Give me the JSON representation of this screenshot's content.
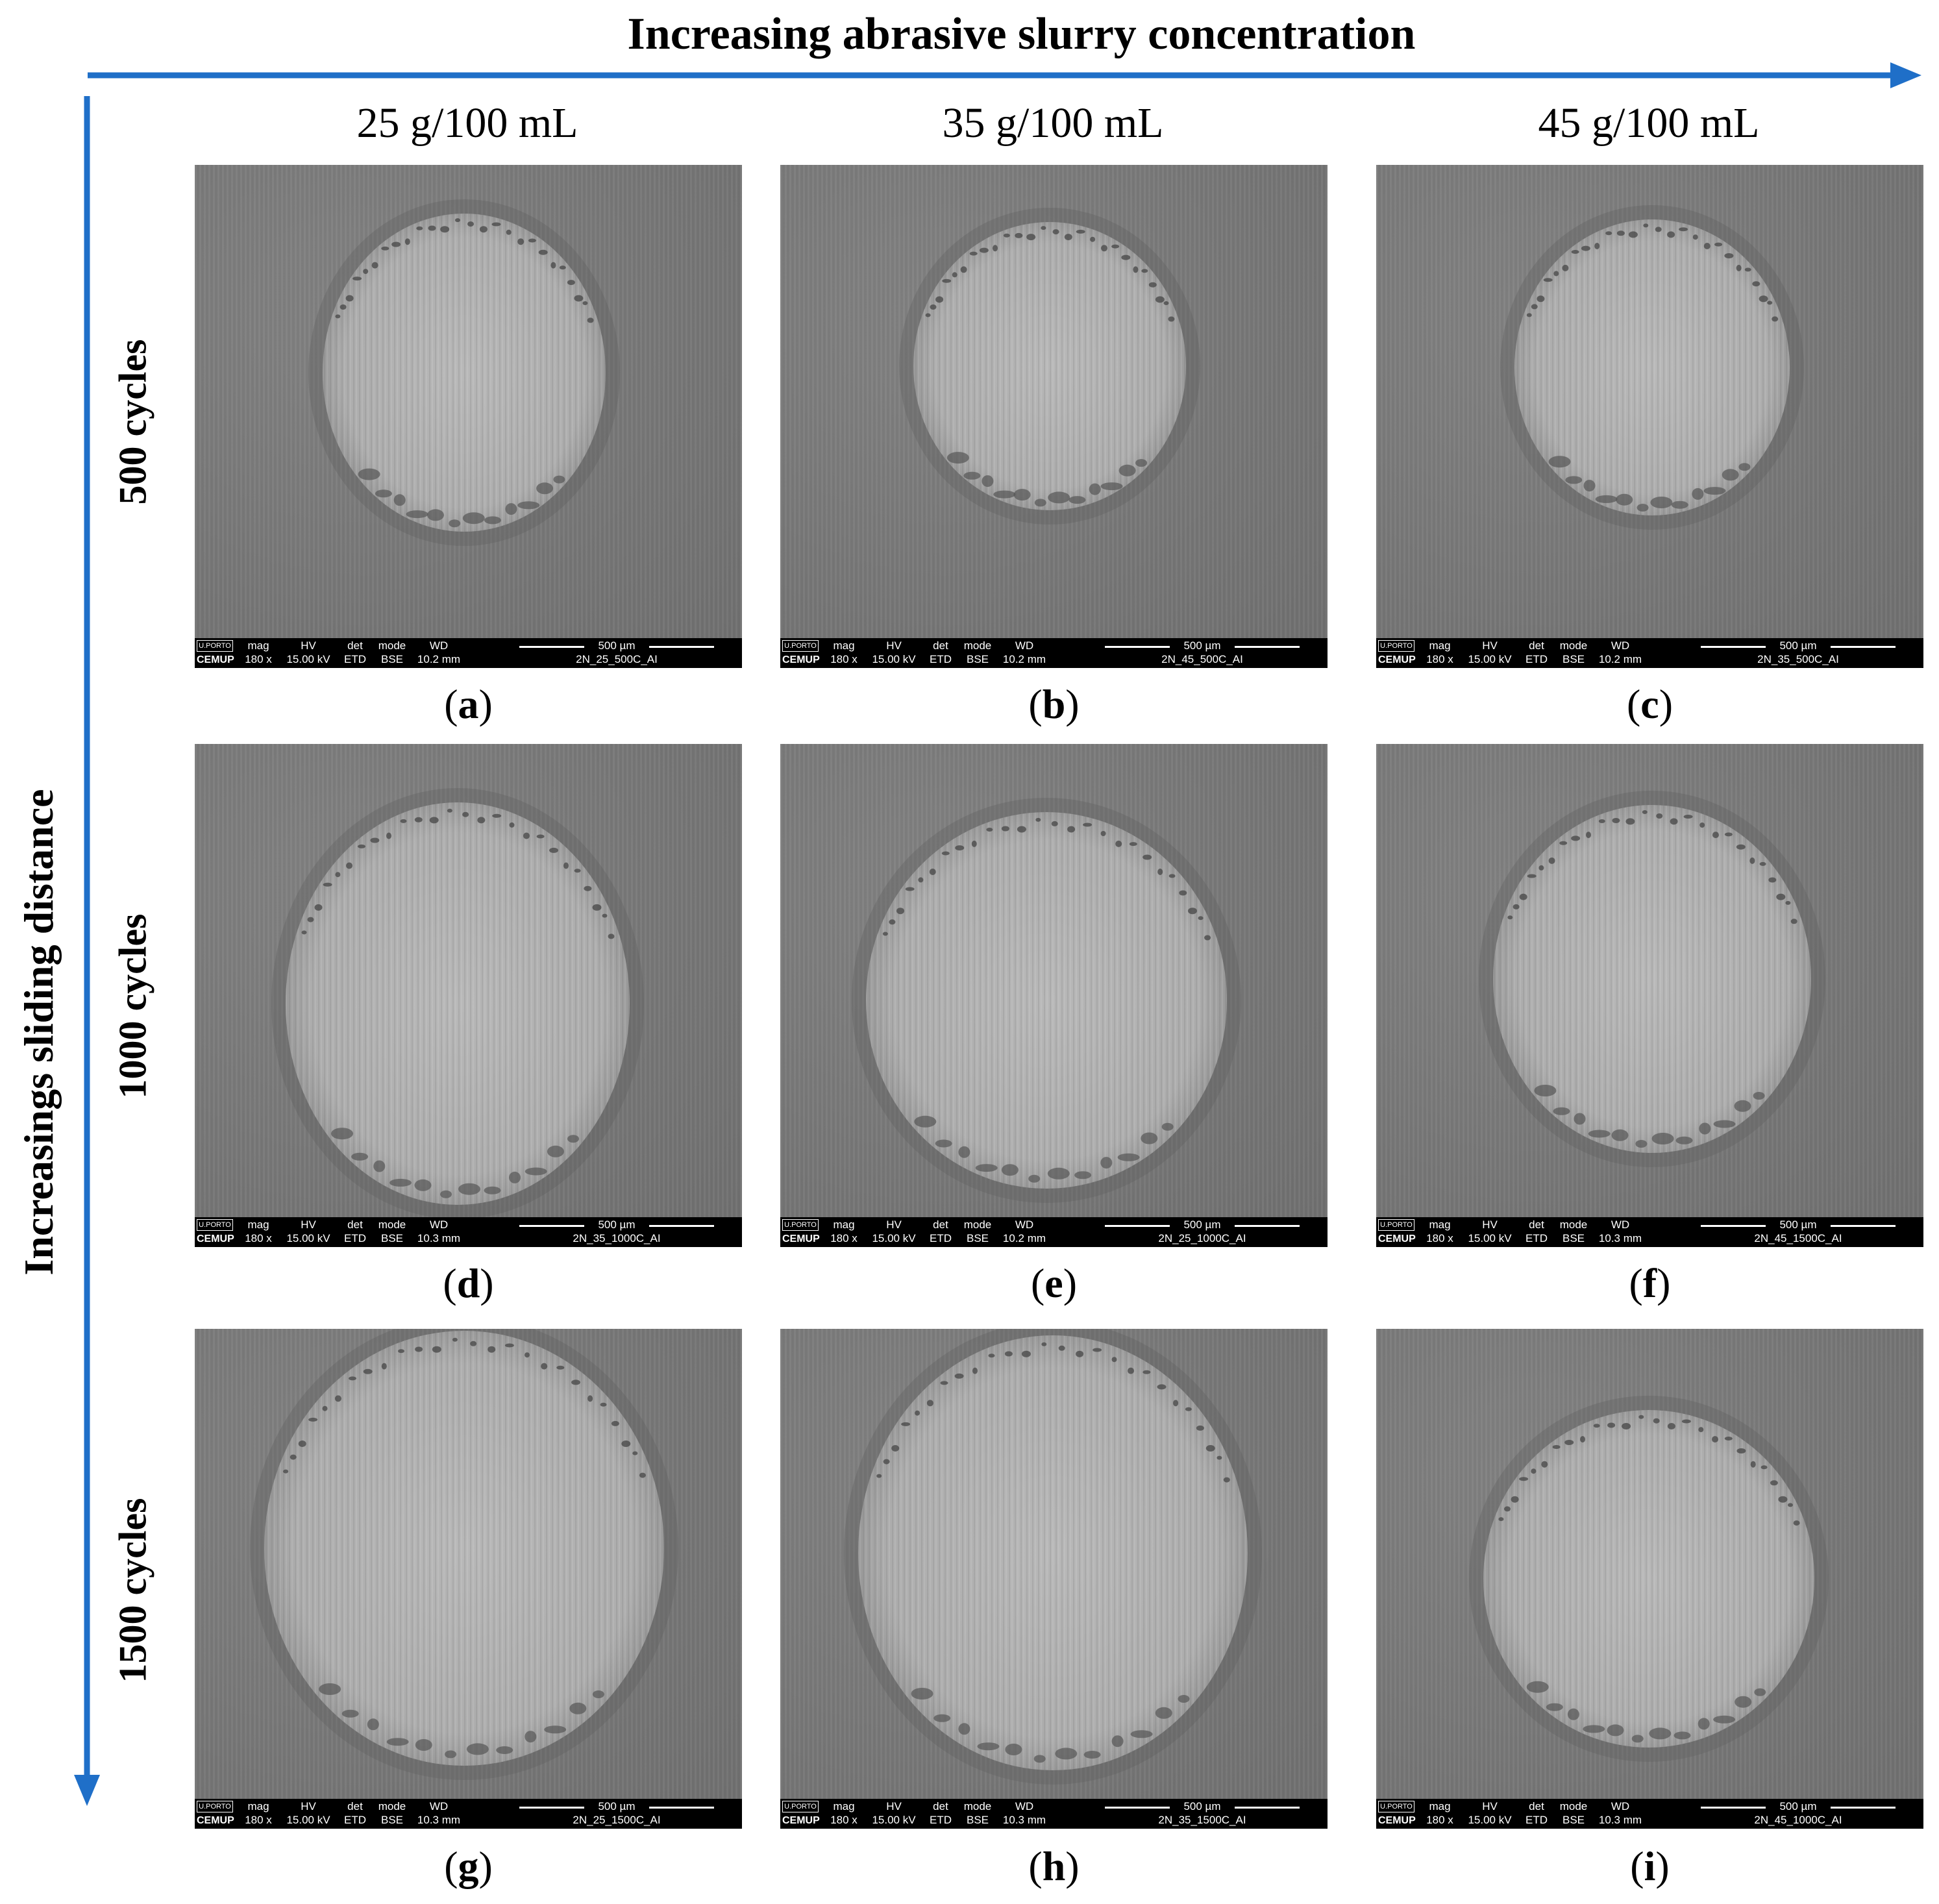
{
  "top_axis": {
    "title": "Increasing abrasive slurry concentration"
  },
  "side_axis": {
    "title": "Increasings sliding distance"
  },
  "columns": [
    "25 g/100 mL",
    "35 g/100 mL",
    "45 g/100 mL"
  ],
  "rows": [
    "500 cycles",
    "1000 cycles",
    "1500 cycles"
  ],
  "colors": {
    "arrow": "#1f6fc8",
    "sem_bg": "#7a7a7a",
    "scar": "#b2b2b2",
    "databar": "#000000"
  },
  "databar_common": {
    "logo_top": "U.PORTO",
    "logo_bottom": "CEMUP",
    "headers": [
      "mag",
      "HV",
      "det",
      "mode",
      "WD"
    ],
    "mag": "180 x",
    "hv": "15.00 kV",
    "det": "ETD",
    "mode": "BSE",
    "scale": "500 µm"
  },
  "panels": [
    {
      "id": "a",
      "caption_open": "(",
      "caption_letter": "a",
      "caption_close": ")",
      "wd": "10.2 mm",
      "file": "2N_25_500C_AI"
    },
    {
      "id": "b",
      "caption_open": "(",
      "caption_letter": "b",
      "caption_close": ")",
      "wd": "10.2 mm",
      "file": "2N_45_500C_AI"
    },
    {
      "id": "c",
      "caption_open": "(",
      "caption_letter": "c",
      "caption_close": ")",
      "wd": "10.2 mm",
      "file": "2N_35_500C_AI"
    },
    {
      "id": "d",
      "caption_open": "(",
      "caption_letter": "d",
      "caption_close": ")",
      "wd": "10.3 mm",
      "file": "2N_35_1000C_AI"
    },
    {
      "id": "e",
      "caption_open": "(",
      "caption_letter": "e",
      "caption_close": ")",
      "wd": "10.2 mm",
      "file": "2N_25_1000C_AI"
    },
    {
      "id": "f",
      "caption_open": "(",
      "caption_letter": "f",
      "caption_close": ")",
      "wd": "10.3 mm",
      "file": "2N_45_1500C_AI"
    },
    {
      "id": "g",
      "caption_open": "(",
      "caption_letter": "g",
      "caption_close": ")",
      "wd": "10.3 mm",
      "file": "2N_25_1500C_AI"
    },
    {
      "id": "h",
      "caption_open": "(",
      "caption_letter": "h",
      "caption_close": ")",
      "wd": "10.3 mm",
      "file": "2N_35_1500C_AI"
    },
    {
      "id": "i",
      "caption_open": "(",
      "caption_letter": "i",
      "caption_close": ")",
      "wd": "10.3 mm",
      "file": "2N_45_1000C_AI"
    }
  ]
}
